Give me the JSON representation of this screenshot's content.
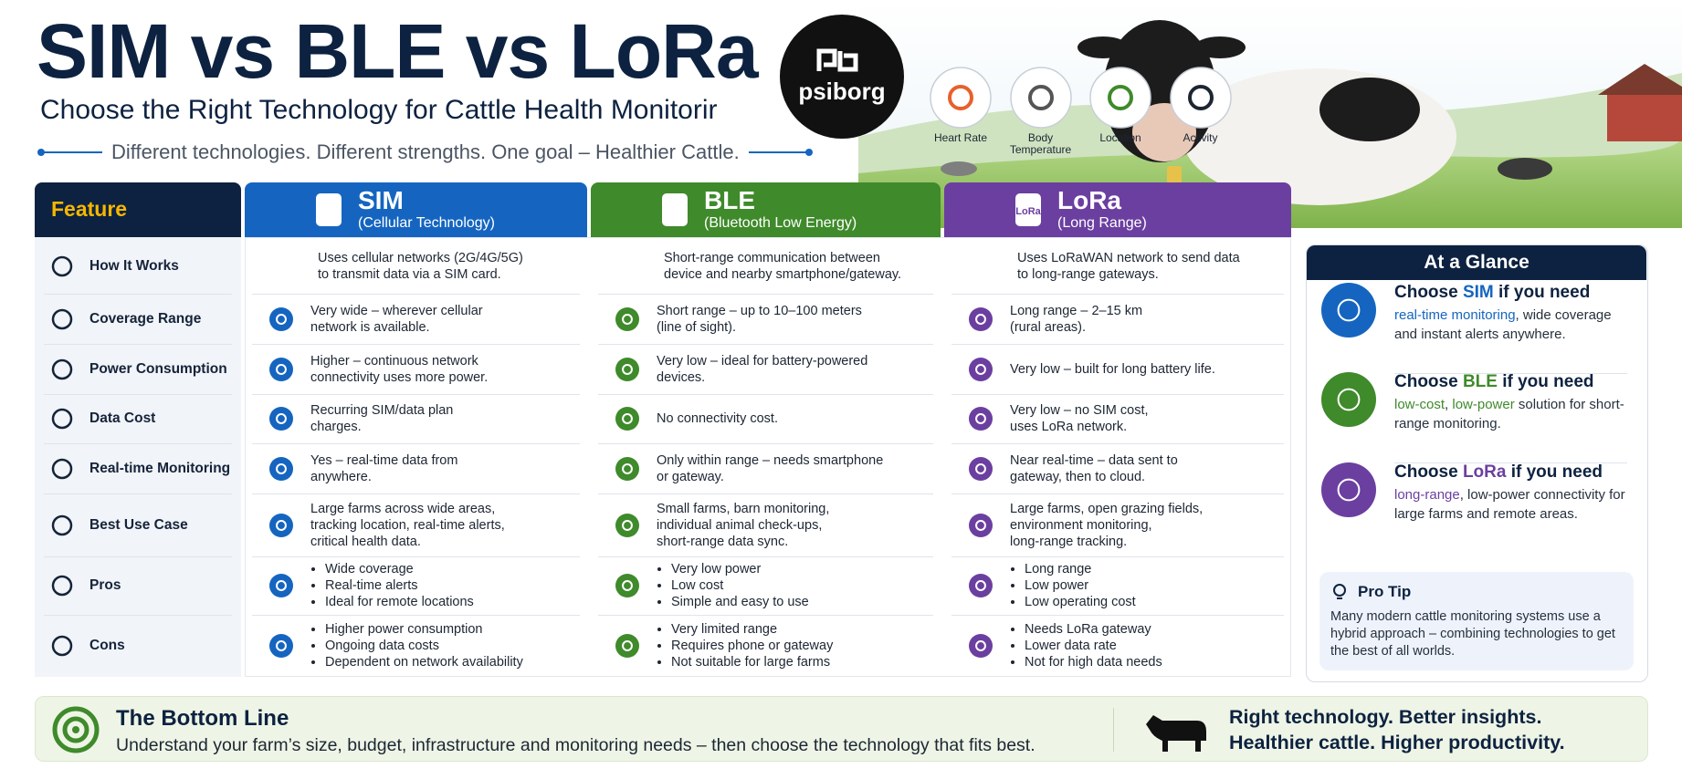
{
  "header": {
    "title": "SIM vs BLE vs LoRa",
    "subtitle": "Choose the Right Technology for Cattle Health Monitorir",
    "tagline": "Different technologies. Different strengths. One goal – Healthier Cattle.",
    "logo": "psiborg"
  },
  "metrics": [
    "Heart Rate",
    "Body Temperature",
    "Location",
    "Activity"
  ],
  "table": {
    "feature_header": "Feature",
    "columns": [
      {
        "name": "SIM",
        "subtitle": "(Cellular Technology)",
        "color": "#1565c0"
      },
      {
        "name": "BLE",
        "subtitle": "(Bluetooth Low Energy)",
        "color": "#3f8a2b"
      },
      {
        "name": "LoRa",
        "subtitle": "(Long Range)",
        "color": "#6b3fa0"
      }
    ],
    "rows": [
      {
        "feature": "How It Works",
        "cells": [
          [
            "Uses cellular networks (2G/4G/5G)",
            "to transmit data via a SIM card."
          ],
          [
            "Short-range communication between",
            "device and nearby smartphone/gateway."
          ],
          [
            "Uses LoRaWAN network to send data",
            "to long-range gateways."
          ]
        ]
      },
      {
        "feature": "Coverage Range",
        "cells": [
          [
            "Very wide – wherever cellular",
            "network is available."
          ],
          [
            "Short range – up to 10–100 meters",
            "(line of sight)."
          ],
          [
            "Long range – 2–15 km",
            "(rural areas)."
          ]
        ]
      },
      {
        "feature": "Power Consumption",
        "cells": [
          [
            "Higher – continuous network",
            "connectivity uses more power."
          ],
          [
            "Very low – ideal for battery-powered",
            "devices."
          ],
          [
            "Very low – built for long battery life."
          ]
        ]
      },
      {
        "feature": "Data Cost",
        "cells": [
          [
            "Recurring SIM/data plan",
            "charges."
          ],
          [
            "No connectivity cost."
          ],
          [
            "Very low – no SIM cost,",
            "uses LoRa network."
          ]
        ]
      },
      {
        "feature": "Real-time Monitoring",
        "cells": [
          [
            "Yes – real-time data from",
            "anywhere."
          ],
          [
            "Only within range – needs smartphone",
            "or gateway."
          ],
          [
            "Near real-time – data sent to",
            "gateway, then to cloud."
          ]
        ]
      },
      {
        "feature": "Best Use Case",
        "cells": [
          [
            "Large farms across wide areas,",
            "tracking location, real-time alerts,",
            "critical health data."
          ],
          [
            "Small farms, barn monitoring,",
            "individual animal check-ups,",
            "short-range data sync."
          ],
          [
            "Large farms, open grazing fields,",
            "environment monitoring,",
            "long-range tracking."
          ]
        ]
      },
      {
        "feature": "Pros",
        "list": true,
        "cells": [
          [
            "Wide coverage",
            "Real-time alerts",
            "Ideal for remote locations"
          ],
          [
            "Very low power",
            "Low cost",
            "Simple and easy to use"
          ],
          [
            "Long range",
            "Low power",
            "Low operating cost"
          ]
        ]
      },
      {
        "feature": "Cons",
        "list": true,
        "cells": [
          [
            "Higher power consumption",
            "Ongoing data costs",
            "Dependent on network availability"
          ],
          [
            "Very limited range",
            "Requires phone or gateway",
            "Not suitable for large farms"
          ],
          [
            "Needs LoRa gateway",
            "Lower data rate",
            "Not for high data needs"
          ]
        ]
      }
    ]
  },
  "at_a_glance": {
    "title": "At a Glance",
    "items": [
      {
        "prefix": "Choose ",
        "tech": "SIM",
        "suffix": " if you need",
        "detail": [
          {
            "text": "real-time monitoring",
            "accent": true
          },
          {
            "text": ", wide coverage and instant alerts anywhere."
          }
        ]
      },
      {
        "prefix": "Choose ",
        "tech": "BLE",
        "suffix": " if you need",
        "detail": [
          {
            "text": "low-cost",
            "accent": true
          },
          {
            "text": ", "
          },
          {
            "text": "low-power",
            "accent": true
          },
          {
            "text": " solution for short-range monitoring."
          }
        ]
      },
      {
        "prefix": "Choose ",
        "tech": "LoRa",
        "suffix": " if you need",
        "detail": [
          {
            "text": "long-range",
            "accent": true
          },
          {
            "text": ", low-power connectivity for large farms and remote areas."
          }
        ]
      }
    ],
    "pro_tip": {
      "title": "Pro Tip",
      "text": "Many modern cattle monitoring systems use a hybrid approach – combining technologies to get the best of all worlds."
    }
  },
  "bottom": {
    "title": "The Bottom Line",
    "text": "Understand your farm’s size, budget, infrastructure and monitoring needs – then choose the technology that fits best.",
    "slogan": [
      "Right technology. Better insights.",
      "Healthier cattle. Higher productivity."
    ]
  }
}
